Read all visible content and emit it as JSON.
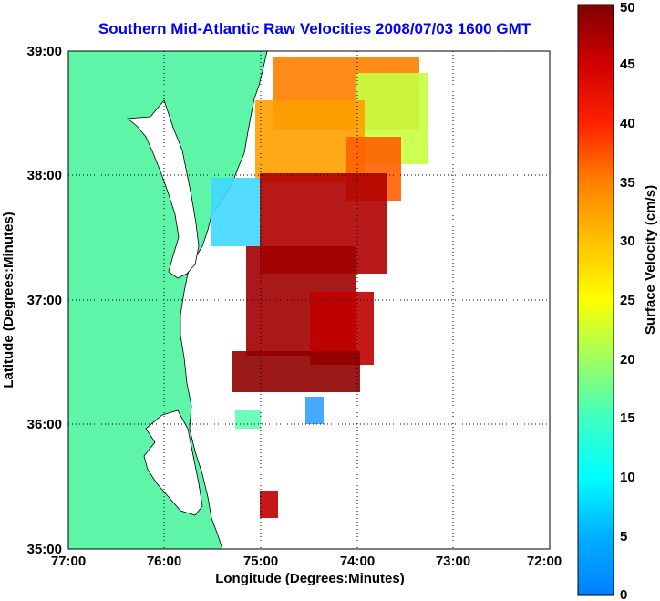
{
  "chart_data": {
    "type": "heatmap",
    "title": "Southern Mid-Atlantic Raw Velocities 2008/07/03 1600 GMT",
    "xlabel": "Longitude (Degrees:Minutes)",
    "ylabel": "Latitude (Degrees:Minutes)",
    "xlim": [
      -77,
      -72
    ],
    "ylim": [
      35,
      39
    ],
    "x_ticks": [
      -77,
      -76,
      -75,
      -74,
      -73,
      -72
    ],
    "x_tick_labels": [
      "77:00",
      "76:00",
      "75:00",
      "74:00",
      "73:00",
      "72:00"
    ],
    "y_ticks": [
      35,
      36,
      37,
      38,
      39
    ],
    "y_tick_labels": [
      "35:00",
      "36:00",
      "37:00",
      "38:00",
      "39:00"
    ],
    "grid": true,
    "colorbar": {
      "label": "Surface Velocity (cm/s)",
      "range": [
        0,
        50
      ],
      "ticks": [
        0,
        5,
        10,
        15,
        20,
        25,
        30,
        35,
        40,
        45,
        50
      ],
      "tick_labels": [
        "0",
        "5",
        "10",
        "15",
        "20",
        "25",
        "30",
        "35",
        "40",
        "45",
        "50"
      ],
      "colormap": "jet"
    },
    "land_color": "#5ef5a8",
    "velocity_patches": [
      {
        "lon": [
          -74.8,
          -73.6
        ],
        "lat": [
          38.5,
          39.0
        ],
        "speed": 35
      },
      {
        "lon": [
          -73.9,
          -73.3
        ],
        "lat": [
          38.3,
          38.8
        ],
        "speed": 24
      },
      {
        "lon": [
          -75.0,
          -74.2
        ],
        "lat": [
          37.8,
          38.5
        ],
        "speed": 33
      },
      {
        "lon": [
          -74.2,
          -73.6
        ],
        "lat": [
          37.9,
          38.3
        ],
        "speed": 38
      },
      {
        "lon": [
          -75.4,
          -74.9
        ],
        "lat": [
          37.4,
          37.9
        ],
        "speed": 14
      },
      {
        "lon": [
          -75.0,
          -73.9
        ],
        "lat": [
          37.2,
          37.9
        ],
        "speed": 45
      },
      {
        "lon": [
          -75.2,
          -74.2
        ],
        "lat": [
          36.5,
          37.2
        ],
        "speed": 48
      },
      {
        "lon": [
          -74.5,
          -73.9
        ],
        "lat": [
          36.5,
          37.0
        ],
        "speed": 46
      },
      {
        "lon": [
          -75.6,
          -74.6
        ],
        "lat": [
          36.2,
          36.6
        ],
        "speed": 47
      },
      {
        "lon": [
          -74.5,
          -74.3
        ],
        "lat": [
          35.9,
          36.2
        ],
        "speed": 10
      },
      {
        "lon": [
          -75.2,
          -75.0
        ],
        "lat": [
          35.2,
          35.5
        ],
        "speed": 47
      },
      {
        "lon": [
          -75.9,
          -75.5
        ],
        "lat": [
          35.3,
          35.8
        ],
        "speed": 16
      }
    ]
  }
}
